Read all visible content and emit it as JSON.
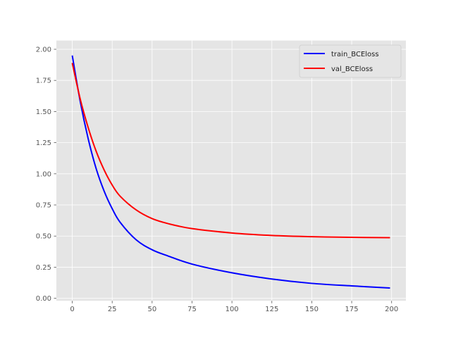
{
  "chart_data": {
    "type": "line",
    "title": "",
    "xlabel": "",
    "ylabel": "",
    "xlim": [
      -9.95,
      208.95
    ],
    "ylim": [
      -0.02,
      2.07
    ],
    "x_ticks": [
      0,
      25,
      50,
      75,
      100,
      125,
      150,
      175,
      200
    ],
    "y_ticks": [
      0.0,
      0.25,
      0.5,
      0.75,
      1.0,
      1.25,
      1.5,
      1.75,
      2.0
    ],
    "x_tick_labels": [
      "0",
      "25",
      "50",
      "75",
      "100",
      "125",
      "150",
      "175",
      "200"
    ],
    "y_tick_labels": [
      "0.00",
      "0.25",
      "0.50",
      "0.75",
      "1.00",
      "1.25",
      "1.50",
      "1.75",
      "2.00"
    ],
    "grid": true,
    "legend_position": "top-right",
    "x": [
      0,
      5,
      10,
      15,
      20,
      25,
      30,
      40,
      50,
      60,
      75,
      100,
      125,
      150,
      175,
      199
    ],
    "series": [
      {
        "name": "train_BCEloss",
        "color": "#0000ff",
        "values": [
          1.95,
          1.58,
          1.28,
          1.04,
          0.86,
          0.72,
          0.61,
          0.47,
          0.39,
          0.34,
          0.275,
          0.205,
          0.155,
          0.12,
          0.1,
          0.083
        ]
      },
      {
        "name": "val_BCEloss",
        "color": "#ff0000",
        "values": [
          1.89,
          1.6,
          1.37,
          1.18,
          1.03,
          0.91,
          0.82,
          0.71,
          0.64,
          0.6,
          0.56,
          0.525,
          0.505,
          0.495,
          0.49,
          0.487
        ]
      }
    ]
  }
}
